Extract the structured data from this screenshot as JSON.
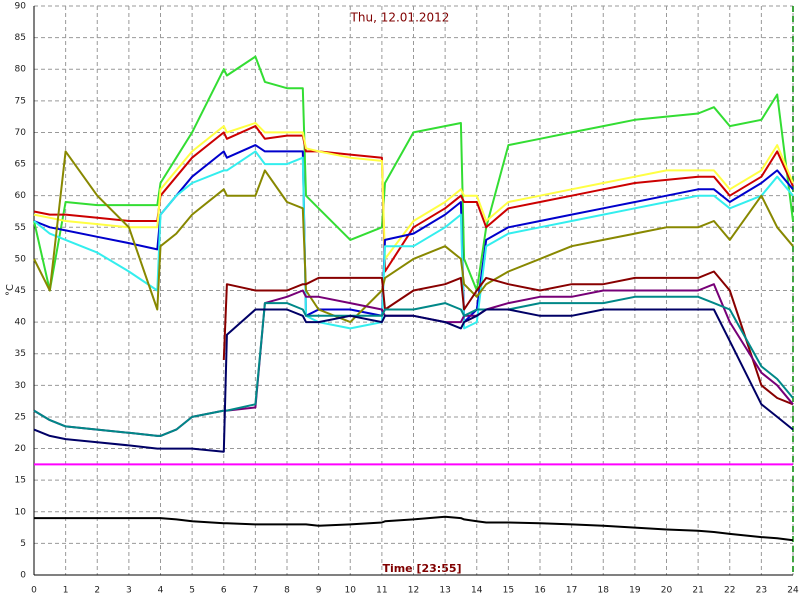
{
  "chart_data": {
    "type": "line",
    "title": "Thu, 12.01.2012",
    "xlabel": "Time [23:55]",
    "ylabel": "°C",
    "x": [
      0,
      0.5,
      1,
      2,
      3,
      3.9,
      4,
      4.5,
      5,
      6,
      6.1,
      7,
      7.3,
      8,
      8.5,
      8.6,
      9,
      10,
      11,
      11.1,
      12,
      13,
      13.5,
      13.6,
      14,
      14.3,
      15,
      16,
      17,
      18,
      19,
      20,
      21,
      21.5,
      22,
      23,
      23.5,
      24
    ],
    "xlim": [
      0,
      24
    ],
    "xticks": [
      0,
      1,
      2,
      3,
      4,
      5,
      6,
      7,
      8,
      9,
      10,
      11,
      12,
      13,
      14,
      15,
      16,
      17,
      18,
      19,
      20,
      21,
      22,
      23,
      24
    ],
    "ylim": [
      0,
      90
    ],
    "yticks": [
      0,
      5,
      10,
      15,
      20,
      25,
      30,
      35,
      40,
      45,
      50,
      55,
      60,
      65,
      70,
      75,
      80,
      85,
      90
    ],
    "grid": true,
    "series": [
      {
        "color": "#33dd33",
        "values": [
          56,
          45,
          59,
          58.5,
          58.5,
          58.5,
          62,
          66,
          70,
          80,
          79,
          82,
          78,
          77,
          77,
          60,
          58,
          53,
          55,
          62,
          70,
          71,
          71.5,
          50,
          45,
          55,
          68,
          69,
          70,
          71,
          72,
          72.5,
          73,
          74,
          71,
          72,
          76,
          56
        ]
      },
      {
        "color": "#cc0000",
        "values": [
          57.5,
          57,
          57,
          56.5,
          56,
          56,
          60,
          63,
          66,
          70,
          69,
          71,
          69,
          69.5,
          69.5,
          67,
          67,
          66.5,
          66,
          48,
          55,
          58,
          60,
          59,
          59,
          55,
          58,
          59,
          60,
          61,
          62,
          62.5,
          63,
          63,
          60,
          63,
          67,
          61.5
        ]
      },
      {
        "color": "#ffff44",
        "values": [
          57,
          56.5,
          56,
          55.5,
          55,
          55,
          61,
          64,
          67,
          71,
          70,
          71.5,
          70,
          70,
          70,
          67.5,
          67,
          66,
          65.5,
          50,
          56,
          59,
          61,
          60,
          60,
          56,
          59,
          60,
          61,
          62,
          63,
          64,
          64,
          64,
          61,
          64,
          68,
          62
        ]
      },
      {
        "color": "#0000cc",
        "values": [
          56,
          55,
          54.5,
          53.5,
          52.5,
          51.5,
          57,
          60,
          63,
          67,
          66,
          68,
          67,
          67,
          67,
          41,
          42,
          42,
          41,
          53,
          54,
          57,
          59,
          40,
          42,
          53,
          55,
          56,
          57,
          58,
          59,
          60,
          61,
          61,
          59,
          62,
          64,
          61
        ]
      },
      {
        "color": "#33eeee",
        "values": [
          56,
          54,
          53,
          51,
          48,
          45,
          57,
          60,
          62,
          64,
          64,
          67,
          65,
          65,
          66,
          41,
          40,
          39,
          40,
          52,
          52,
          55,
          57,
          39,
          40,
          52,
          54,
          55,
          56,
          57,
          58,
          59,
          60,
          60,
          58,
          60,
          63,
          60
        ]
      },
      {
        "color": "#888800",
        "values": [
          50,
          45,
          67,
          60,
          55,
          42,
          52,
          54,
          57,
          61,
          60,
          60,
          64,
          59,
          58,
          45,
          42,
          40,
          45,
          47,
          50,
          52,
          50,
          46,
          44,
          46,
          48,
          50,
          52,
          53,
          54,
          55,
          55,
          56,
          53,
          60,
          55,
          52
        ]
      },
      {
        "color": "#880000",
        "values": [
          null,
          null,
          null,
          null,
          null,
          null,
          null,
          null,
          null,
          34,
          46,
          45,
          45,
          45,
          46,
          46,
          47,
          47,
          47,
          42,
          45,
          46,
          47,
          42,
          45,
          47,
          46,
          45,
          46,
          46,
          47,
          47,
          47,
          48,
          45,
          30,
          28,
          27
        ]
      },
      {
        "color": "#770077",
        "values": [
          26,
          24.5,
          23.5,
          23,
          22.5,
          22,
          22,
          23,
          25,
          26,
          26,
          26.5,
          43,
          44,
          45,
          44,
          44,
          43,
          42,
          41,
          41,
          40,
          40,
          41,
          41,
          42,
          43,
          44,
          44,
          45,
          45,
          45,
          45,
          46,
          40,
          32,
          30,
          27
        ]
      },
      {
        "color": "#008888",
        "values": [
          26,
          24.5,
          23.5,
          23,
          22.5,
          22,
          22,
          23,
          25,
          26,
          26,
          27,
          43,
          43,
          42,
          41,
          41,
          41,
          41,
          42,
          42,
          43,
          42,
          41,
          42,
          42,
          42,
          43,
          43,
          43,
          44,
          44,
          44,
          43,
          42,
          33,
          31,
          28
        ]
      },
      {
        "color": "#000066",
        "values": [
          23,
          22,
          21.5,
          21,
          20.5,
          20,
          20,
          20,
          20,
          19.5,
          38,
          42,
          42,
          42,
          41,
          40,
          40,
          41,
          40,
          41,
          41,
          40,
          39,
          40,
          41,
          42,
          42,
          41,
          41,
          42,
          42,
          42,
          42,
          42,
          37,
          27,
          25,
          23
        ]
      },
      {
        "color": "#ff00ff",
        "values": [
          17.5,
          17.5,
          17.5,
          17.5,
          17.5,
          17.5,
          17.5,
          17.5,
          17.5,
          17.5,
          17.5,
          17.5,
          17.5,
          17.5,
          17.5,
          17.5,
          17.5,
          17.5,
          17.5,
          17.5,
          17.5,
          17.5,
          17.5,
          17.5,
          17.5,
          17.5,
          17.5,
          17.5,
          17.5,
          17.5,
          17.5,
          17.5,
          17.5,
          17.5,
          17.5,
          17.5,
          17.5,
          17.5
        ]
      },
      {
        "color": "#000000",
        "values": [
          9,
          9,
          9,
          9,
          9,
          9,
          9,
          8.8,
          8.5,
          8.2,
          8.2,
          8,
          8,
          8,
          8,
          8,
          7.8,
          8,
          8.3,
          8.5,
          8.8,
          9.2,
          9,
          8.8,
          8.5,
          8.3,
          8.3,
          8.2,
          8,
          7.8,
          7.5,
          7.2,
          7,
          6.8,
          6.5,
          6,
          5.8,
          5.5
        ]
      }
    ]
  }
}
